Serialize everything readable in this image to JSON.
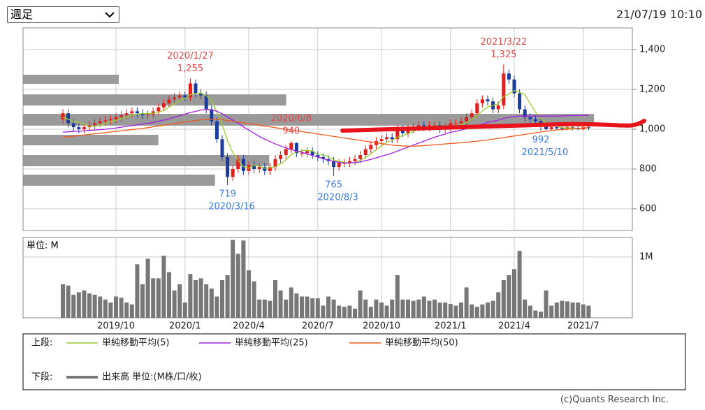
{
  "header": {
    "select": "週足",
    "timestamp": "21/07/19 10:10"
  },
  "footer": {
    "credit": "(c)Quants Research Inc."
  },
  "chart_data": {
    "type": "candlestick",
    "grid": true,
    "up_color": "#e0201c",
    "down_color": "#1c3c9c",
    "ylim": [
      491,
      1509
    ],
    "yticks": [
      600,
      800,
      {
        "value": 1000,
        "label": "1,000"
      },
      {
        "value": 1200,
        "label": "1,200"
      },
      {
        "value": 1400,
        "label": "1,400"
      }
    ],
    "categories": [
      null,
      null,
      null,
      null,
      null,
      null,
      null,
      null,
      null,
      null,
      "2019/10",
      null,
      null,
      null,
      null,
      null,
      null,
      null,
      null,
      null,
      null,
      null,
      null,
      "2020/1",
      null,
      null,
      null,
      null,
      null,
      null,
      null,
      null,
      null,
      null,
      null,
      "2020/4",
      null,
      null,
      null,
      null,
      null,
      null,
      null,
      null,
      null,
      null,
      null,
      null,
      "2020/7",
      null,
      null,
      null,
      null,
      null,
      null,
      null,
      null,
      null,
      null,
      null,
      "2020/10",
      null,
      null,
      null,
      null,
      null,
      null,
      null,
      null,
      null,
      null,
      null,
      null,
      "2021/1",
      null,
      null,
      null,
      null,
      null,
      null,
      null,
      null,
      null,
      null,
      null,
      "2021/4",
      null,
      null,
      null,
      null,
      null,
      null,
      null,
      null,
      null,
      null,
      null,
      null,
      "2021/7",
      null
    ],
    "open": [
      1050,
      1080,
      1030,
      1010,
      1000,
      1010,
      1020,
      1030,
      1040,
      1045,
      1050,
      1060,
      1070,
      1080,
      1090,
      1080,
      1070,
      1075,
      1090,
      1110,
      1130,
      1150,
      1160,
      1170,
      1160,
      1230,
      1180,
      1170,
      1100,
      1040,
      950,
      860,
      760,
      800,
      850,
      790,
      820,
      800,
      810,
      790,
      810,
      850,
      870,
      900,
      930,
      880,
      880,
      890,
      870,
      860,
      850,
      840,
      810,
      830,
      830,
      840,
      850,
      870,
      900,
      920,
      940,
      950,
      960,
      950,
      1000,
      980,
      1000,
      1010,
      1020,
      1010,
      1020,
      1020,
      1000,
      1010,
      1030,
      1030,
      1040,
      1060,
      1080,
      1130,
      1150,
      1140,
      1100,
      1120,
      1280,
      1250,
      1180,
      1100,
      1060,
      1050,
      1040,
      1020,
      1000,
      1010,
      1005,
      1000,
      1010,
      1005,
      1000,
      1010
    ],
    "high": [
      1100,
      1100,
      1050,
      1030,
      1030,
      1040,
      1050,
      1060,
      1065,
      1070,
      1080,
      1090,
      1100,
      1110,
      1110,
      1100,
      1095,
      1110,
      1130,
      1150,
      1170,
      1180,
      1190,
      1190,
      1255,
      1250,
      1200,
      1190,
      1120,
      1060,
      970,
      880,
      820,
      870,
      870,
      840,
      840,
      830,
      830,
      830,
      870,
      890,
      920,
      940,
      935,
      900,
      910,
      910,
      890,
      880,
      870,
      860,
      850,
      850,
      860,
      870,
      890,
      920,
      940,
      960,
      970,
      980,
      980,
      1020,
      1020,
      1020,
      1030,
      1040,
      1040,
      1040,
      1040,
      1040,
      1030,
      1050,
      1050,
      1060,
      1080,
      1100,
      1150,
      1170,
      1170,
      1160,
      1140,
      1325,
      1300,
      1270,
      1200,
      1120,
      1080,
      1070,
      1060,
      1040,
      1030,
      1030,
      1025,
      1030,
      1030,
      1025,
      1030,
      1030
    ],
    "low": [
      1030,
      1010,
      990,
      980,
      980,
      990,
      1000,
      1010,
      1020,
      1025,
      1030,
      1040,
      1050,
      1060,
      1060,
      1050,
      1050,
      1055,
      1070,
      1090,
      1110,
      1130,
      1140,
      1140,
      1140,
      1160,
      1150,
      1080,
      1020,
      930,
      840,
      719,
      740,
      780,
      770,
      770,
      780,
      780,
      770,
      770,
      790,
      830,
      850,
      880,
      860,
      860,
      860,
      850,
      840,
      830,
      820,
      765,
      790,
      810,
      810,
      820,
      830,
      850,
      880,
      900,
      920,
      930,
      930,
      930,
      960,
      960,
      980,
      990,
      990,
      990,
      1000,
      980,
      980,
      990,
      1010,
      1010,
      1020,
      1040,
      1060,
      1110,
      1120,
      1080,
      1080,
      1100,
      1230,
      1160,
      1080,
      1040,
      1030,
      1020,
      992,
      995,
      996,
      995,
      994,
      995,
      995,
      994,
      995,
      996
    ],
    "close": [
      1080,
      1030,
      1010,
      1000,
      1010,
      1020,
      1030,
      1040,
      1045,
      1050,
      1060,
      1070,
      1080,
      1090,
      1080,
      1070,
      1075,
      1090,
      1110,
      1130,
      1150,
      1160,
      1170,
      1160,
      1230,
      1180,
      1170,
      1100,
      1040,
      950,
      860,
      760,
      800,
      850,
      790,
      820,
      800,
      810,
      790,
      810,
      850,
      870,
      900,
      930,
      880,
      880,
      890,
      870,
      860,
      850,
      840,
      810,
      830,
      830,
      840,
      850,
      870,
      900,
      920,
      940,
      950,
      960,
      950,
      1000,
      980,
      1000,
      1010,
      1020,
      1010,
      1020,
      1020,
      1000,
      1010,
      1030,
      1030,
      1040,
      1060,
      1080,
      1130,
      1150,
      1140,
      1100,
      1120,
      1280,
      1250,
      1180,
      1100,
      1060,
      1050,
      1040,
      1020,
      1000,
      1010,
      1005,
      1000,
      1010,
      1005,
      1000,
      1010,
      1005
    ],
    "series": [
      {
        "name": "単純移動平均(5)",
        "color": "#9acd32",
        "values": [
          1060,
          1050,
          1040,
          1035,
          1026,
          1014,
          1014,
          1020,
          1029,
          1037,
          1045,
          1053,
          1061,
          1070,
          1076,
          1078,
          1079,
          1081,
          1085,
          1095,
          1111,
          1128,
          1144,
          1154,
          1174,
          1180,
          1182,
          1168,
          1144,
          1088,
          1024,
          942,
          882,
          844,
          812,
          804,
          818,
          814,
          804,
          806,
          812,
          826,
          846,
          872,
          886,
          892,
          894,
          890,
          876,
          870,
          862,
          846,
          838,
          834,
          830,
          832,
          844,
          858,
          876,
          896,
          916,
          934,
          944,
          960,
          968,
          978,
          988,
          1002,
          1004,
          1012,
          1016,
          1014,
          1012,
          1016,
          1018,
          1022,
          1034,
          1048,
          1068,
          1092,
          1112,
          1120,
          1128,
          1164,
          1178,
          1194,
          1186,
          1174,
          1128,
          1086,
          1054,
          1034,
          1024,
          1015,
          1007,
          1006,
          1006,
          1004,
          1006,
          1006
        ]
      },
      {
        "name": "単純移動平均(25)",
        "color": "#a020e0",
        "values": [
          985,
          987,
          989,
          990,
          992,
          994,
          996,
          998,
          1000,
          1003,
          1006,
          1010,
          1014,
          1018,
          1022,
          1026,
          1030,
          1034,
          1040,
          1046,
          1052,
          1060,
          1068,
          1076,
          1084,
          1090,
          1096,
          1100,
          1098,
          1090,
          1078,
          1062,
          1046,
          1030,
          1012,
          996,
          980,
          964,
          950,
          938,
          926,
          916,
          906,
          898,
          890,
          884,
          876,
          868,
          860,
          852,
          845,
          838,
          833,
          830,
          830,
          832,
          836,
          842,
          848,
          856,
          864,
          872,
          880,
          890,
          900,
          910,
          920,
          930,
          940,
          950,
          960,
          968,
          976,
          984,
          990,
          996,
          1002,
          1010,
          1018,
          1026,
          1034,
          1040,
          1046,
          1054,
          1060,
          1064,
          1066,
          1066,
          1066,
          1066,
          1066,
          1066,
          1066,
          1066,
          1067,
          1068,
          1068,
          1069,
          1070,
          1070
        ]
      },
      {
        "name": "単純移動平均(50)",
        "color": "#f05a1e",
        "values": [
          960,
          962,
          965,
          968,
          971,
          974,
          977,
          980,
          983,
          986,
          989,
          992,
          995,
          998,
          1001,
          1004,
          1008,
          1012,
          1016,
          1020,
          1024,
          1028,
          1032,
          1036,
          1040,
          1044,
          1047,
          1049,
          1050,
          1050,
          1048,
          1044,
          1040,
          1036,
          1032,
          1028,
          1024,
          1020,
          1016,
          1012,
          1008,
          1004,
          1000,
          996,
          992,
          988,
          984,
          980,
          976,
          972,
          968,
          964,
          960,
          956,
          952,
          948,
          944,
          940,
          936,
          932,
          928,
          924,
          920,
          918,
          916,
          915,
          915,
          916,
          918,
          920,
          922,
          924,
          926,
          928,
          930,
          932,
          934,
          937,
          940,
          943,
          946,
          950,
          954,
          958,
          962,
          966,
          970,
          974,
          978,
          982,
          986,
          990,
          993,
          996,
          998,
          1000,
          1002,
          1004,
          1006,
          1008
        ]
      }
    ],
    "annotations": [
      {
        "date": "2020/1/27",
        "label": "1,255",
        "value": 1255
      },
      {
        "date": "2020/3/16",
        "label": "719",
        "value": 719
      },
      {
        "date": "2020/6/8",
        "label": "940",
        "value": 940
      },
      {
        "date": "2020/8/3",
        "label": "765",
        "value": 765
      },
      {
        "date": "2021/3/22",
        "label": "1,325",
        "value": 1325
      },
      {
        "date": "2021/5/10",
        "label": "992",
        "value": 992
      }
    ],
    "high_color": "#e04848",
    "low_color": "#3c7ce0",
    "volume_profile": {
      "color": "#9a9a9a",
      "xlim": [
        0,
        100
      ],
      "bands": [
        [
          1228,
          1274
        ],
        [
          1119,
          1175
        ],
        [
          1018,
          1077
        ],
        [
          919,
          972
        ],
        [
          814,
          870
        ],
        [
          716,
          772
        ]
      ],
      "values": [
        15.7,
        43.2,
        93.7,
        22.2,
        40.4,
        31.5
      ]
    },
    "volume": {
      "name": "出来高 単位:(M株/口/枚)",
      "unit_label": "単位: M",
      "color": "#777777",
      "ylim": [
        0,
        1.32
      ],
      "yticks": [
        {
          "value": 1,
          "label": "1M"
        }
      ],
      "values": [
        0.55,
        0.53,
        0.38,
        0.42,
        0.45,
        0.4,
        0.38,
        0.35,
        0.3,
        0.25,
        0.35,
        0.33,
        0.25,
        0.22,
        0.88,
        0.55,
        0.97,
        0.65,
        0.65,
        1.02,
        0.75,
        0.45,
        0.55,
        0.25,
        0.72,
        0.62,
        0.65,
        0.55,
        0.48,
        0.35,
        0.62,
        0.7,
        1.28,
        1.05,
        1.27,
        0.78,
        0.6,
        0.3,
        0.3,
        0.28,
        0.62,
        0.45,
        0.3,
        0.5,
        0.4,
        0.35,
        0.35,
        0.32,
        0.32,
        0.2,
        0.35,
        0.3,
        0.2,
        0.18,
        0.2,
        0.15,
        0.45,
        0.3,
        0.18,
        0.3,
        0.25,
        0.2,
        0.3,
        0.7,
        0.3,
        0.3,
        0.28,
        0.3,
        0.35,
        0.28,
        0.3,
        0.25,
        0.25,
        0.23,
        0.2,
        0.25,
        0.5,
        0.22,
        0.18,
        0.22,
        0.25,
        0.28,
        0.42,
        0.62,
        0.7,
        0.8,
        1.1,
        0.3,
        0.2,
        0.12,
        0.1,
        0.45,
        0.2,
        0.25,
        0.28,
        0.27,
        0.25,
        0.25,
        0.22,
        0.2
      ]
    },
    "legend_upper": "上段:",
    "legend_lower": "下段:"
  }
}
